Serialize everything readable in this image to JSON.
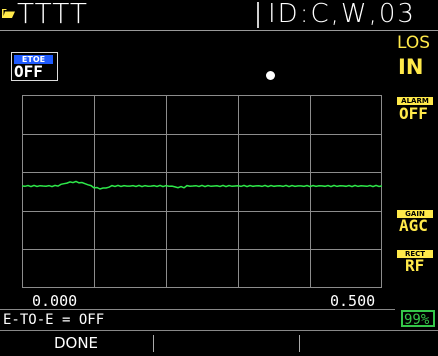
{
  "header": {
    "file_name": "TTTT",
    "id_label": "ID:C,W,03",
    "folder_icon": "folder-icon"
  },
  "etoe": {
    "badge_label": "ETOE",
    "value": "OFF"
  },
  "los": {
    "label": "LOS",
    "value": "IN"
  },
  "side_panel": {
    "alarm": {
      "label": "ALARM",
      "value": "OFF"
    },
    "gain": {
      "label": "GAIN",
      "value": "AGC"
    },
    "rect": {
      "label": "RECT",
      "value": "RF"
    }
  },
  "waveform": {
    "range_start": "0.000",
    "range_end": "0.500",
    "grid_color": "#8c8c8c",
    "trace_color": "#2ee84a"
  },
  "status": {
    "text": "E-TO-E = OFF",
    "battery": "99%"
  },
  "softkeys": [
    {
      "label": "DONE"
    },
    {
      "label": ""
    },
    {
      "label": ""
    }
  ]
}
